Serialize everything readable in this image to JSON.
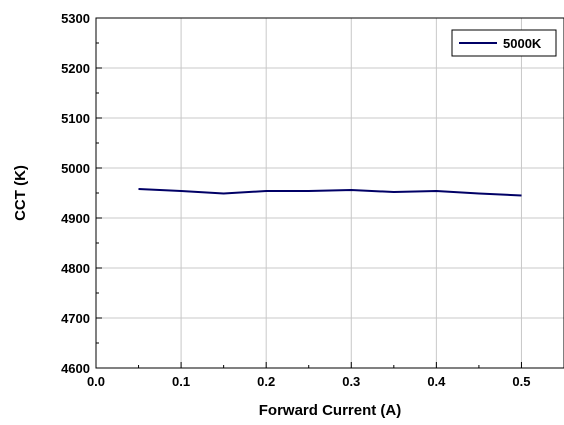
{
  "chart_data": {
    "type": "line",
    "xlabel": "Forward Current (A)",
    "ylabel": "CCT (K)",
    "xlim": [
      0.0,
      0.55
    ],
    "ylim": [
      4600,
      5300
    ],
    "x_ticks": [
      0.0,
      0.1,
      0.2,
      0.3,
      0.4,
      0.5
    ],
    "x_tick_labels": [
      "0.0",
      "0.1",
      "0.2",
      "0.3",
      "0.4",
      "0.5"
    ],
    "y_ticks": [
      4600,
      4700,
      4800,
      4900,
      5000,
      5100,
      5200,
      5300
    ],
    "y_tick_labels": [
      "4600",
      "4700",
      "4800",
      "4900",
      "5000",
      "5100",
      "5200",
      "5300"
    ],
    "grid": true,
    "legend_position": "top-right",
    "series": [
      {
        "name": "5000K",
        "color": "#000066",
        "x": [
          0.05,
          0.1,
          0.15,
          0.2,
          0.25,
          0.3,
          0.35,
          0.4,
          0.45,
          0.5
        ],
        "values": [
          4958,
          4954,
          4949,
          4954,
          4954,
          4956,
          4952,
          4954,
          4949,
          4945
        ]
      }
    ]
  }
}
